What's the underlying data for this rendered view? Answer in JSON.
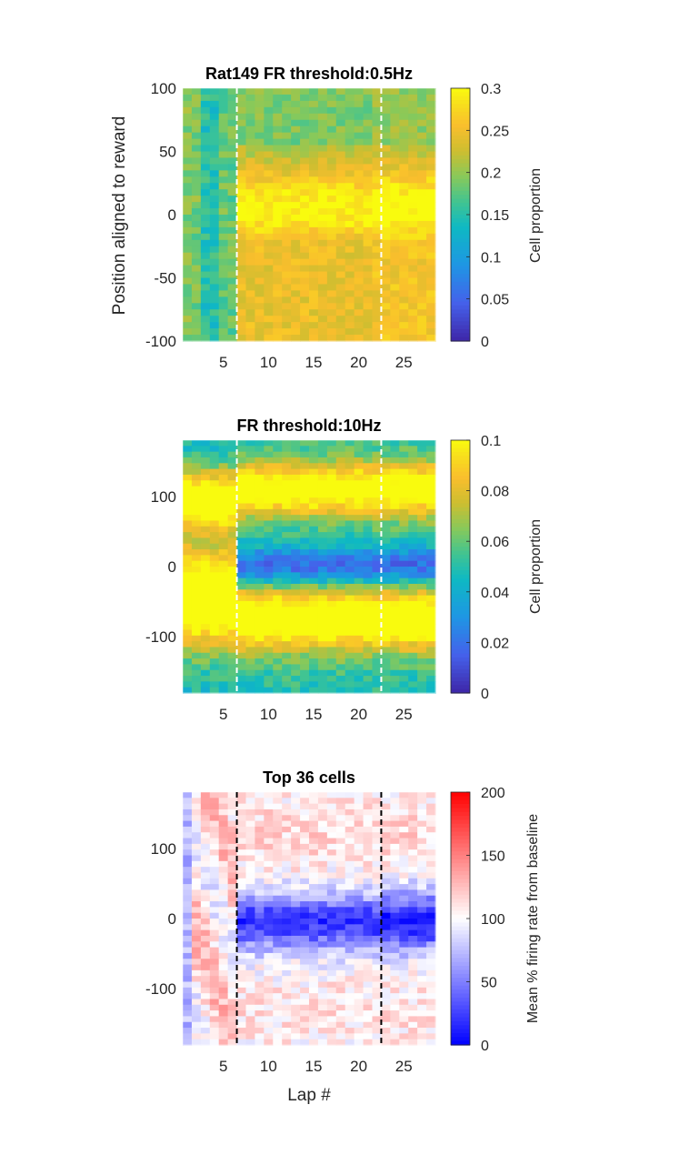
{
  "chart_data": [
    {
      "type": "heatmap",
      "title": "Rat149 FR threshold:0.5Hz",
      "ylabel": "Position aligned to reward",
      "xlabel": "",
      "x_range": [
        0.5,
        28.5
      ],
      "y_range": [
        -100,
        100
      ],
      "x_ticks": [
        "5",
        "10",
        "15",
        "20",
        "25"
      ],
      "y_ticks": [
        "100",
        "50",
        "0",
        "-50",
        "-100"
      ],
      "colorbar": {
        "label": "Cell proportion",
        "colormap": "parula",
        "range": [
          0,
          0.3
        ],
        "ticks": [
          "0.3",
          "0.25",
          "0.2",
          "0.15",
          "0.1",
          "0.05",
          "0"
        ]
      },
      "dashed_lines_x": [
        6.5,
        22.5
      ],
      "dashed_line_color": "#ffffff",
      "pattern": "laps 1-6 uniform approx 0.15-0.2; laps 7-28 band near 0 approx 0.3, flanks approx 0.22"
    },
    {
      "type": "heatmap",
      "title": "FR threshold:10Hz",
      "ylabel": "",
      "xlabel": "",
      "x_range": [
        0.5,
        28.5
      ],
      "y_range": [
        -180,
        180
      ],
      "x_ticks": [
        "5",
        "10",
        "15",
        "20",
        "25"
      ],
      "y_ticks": [
        "100",
        "0",
        "-100"
      ],
      "colorbar": {
        "label": "Cell proportion",
        "colormap": "parula",
        "range": [
          0,
          0.1
        ],
        "ticks": [
          "0.1",
          "0.08",
          "0.06",
          "0.04",
          "0.02",
          "0"
        ]
      },
      "dashed_lines_x": [
        6.5,
        22.5
      ],
      "dashed_line_color": "#ffffff",
      "pattern": "bands at approx +100 and -70 approx 0.1; trough near 0 after lap 6 approx 0.02"
    },
    {
      "type": "heatmap",
      "title": "Top 36 cells",
      "ylabel": "",
      "xlabel": "Lap #",
      "x_range": [
        0.5,
        28.5
      ],
      "y_range": [
        -180,
        180
      ],
      "x_ticks": [
        "5",
        "10",
        "15",
        "20",
        "25"
      ],
      "y_ticks": [
        "100",
        "0",
        "-100"
      ],
      "colorbar": {
        "label": "Mean % firing rate from baseline",
        "colormap": "blue-white-red",
        "range": [
          0,
          200
        ],
        "ticks": [
          "200",
          "150",
          "100",
          "50",
          "0"
        ]
      },
      "dashed_lines_x": [
        6.5,
        22.5
      ],
      "dashed_line_color": "#000000",
      "pattern": "approx 100 baseline; deep blue approx 10-30 near 0 after lap 6"
    }
  ]
}
